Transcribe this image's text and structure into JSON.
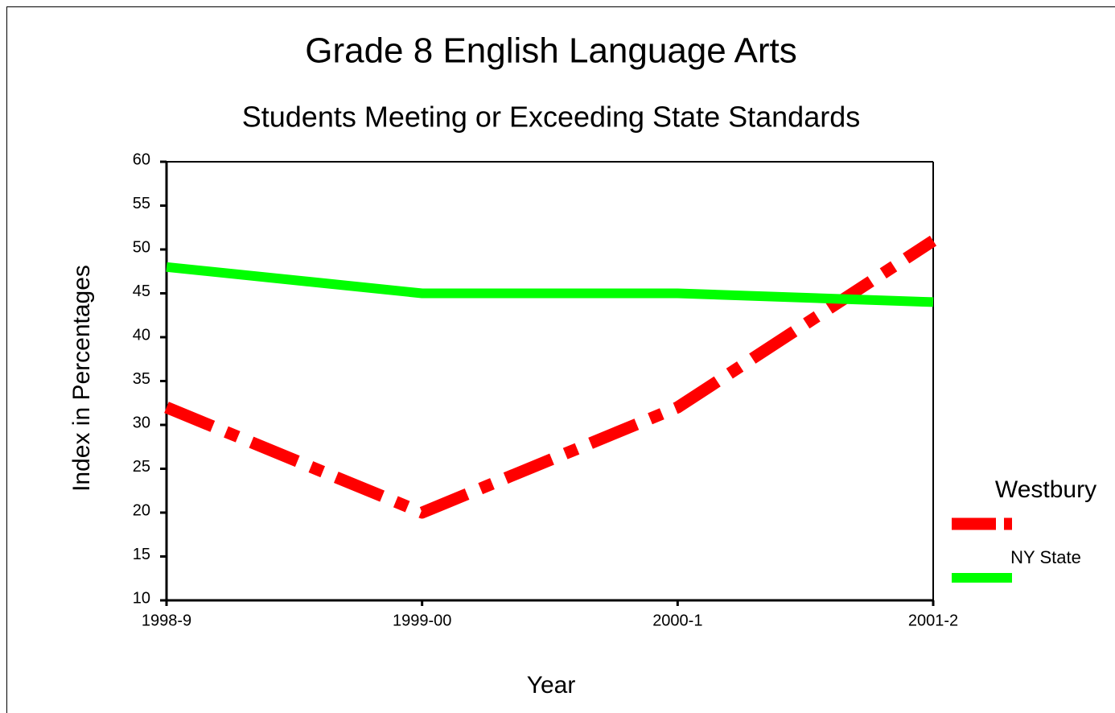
{
  "chart_data": {
    "type": "line",
    "title": "Grade 8 English Language Arts",
    "subtitle": "Students Meeting or Exceeding State Standards",
    "x_label": "Year",
    "y_label": "Index in Percentages",
    "categories": [
      "1998-9",
      "1999-00",
      "2000-1",
      "2001-2"
    ],
    "series": [
      {
        "name": "Westbury",
        "color": "#ff0000",
        "dashed": true,
        "values": [
          32,
          20,
          32,
          51
        ]
      },
      {
        "name": "NY State",
        "color": "#00ff00",
        "dashed": false,
        "values": [
          48,
          45,
          45,
          44
        ]
      }
    ],
    "ylim": [
      10,
      60
    ],
    "yticks": [
      10,
      15,
      20,
      25,
      30,
      35,
      40,
      45,
      50,
      55,
      60
    ],
    "legend": "right"
  }
}
